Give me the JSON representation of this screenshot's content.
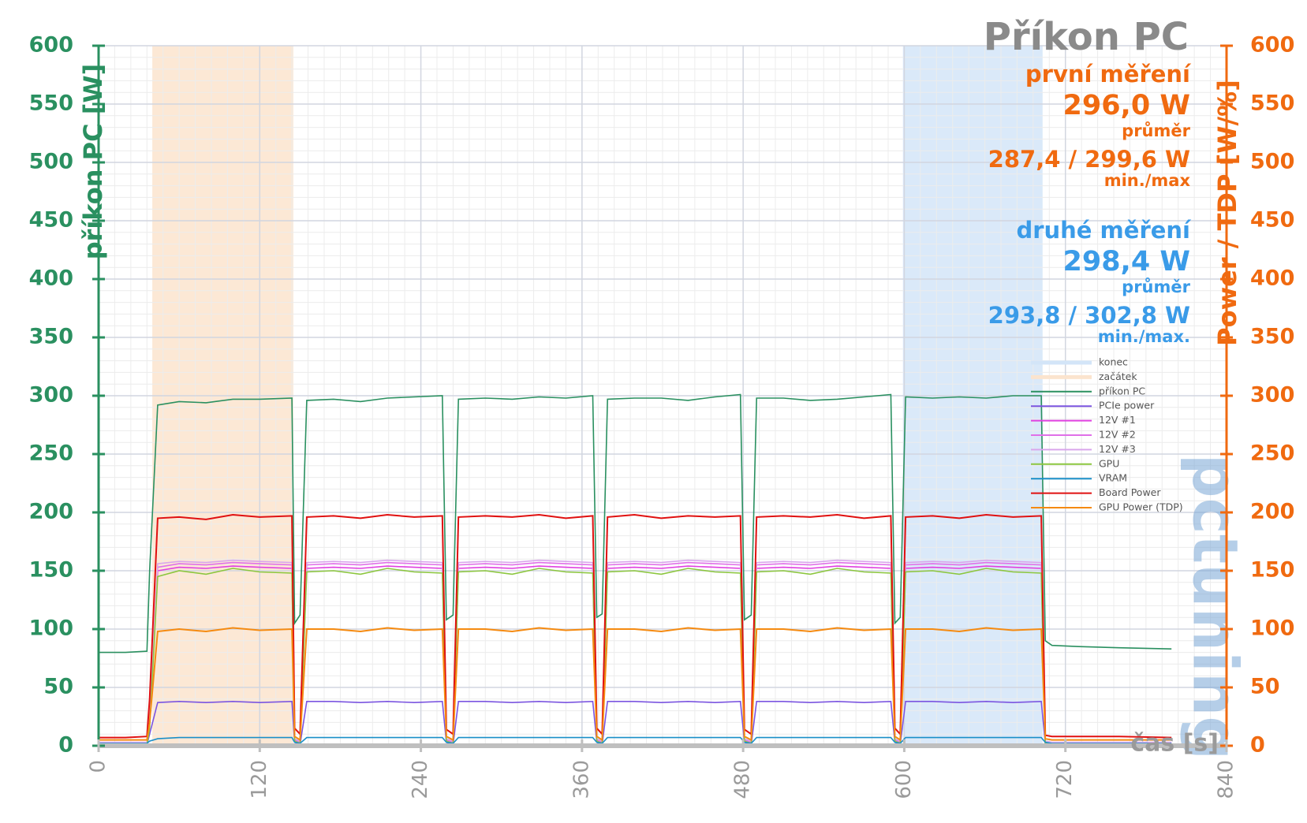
{
  "chart_data": {
    "type": "line",
    "title": "Příkon PC",
    "summary": [
      {
        "label": "první měření",
        "value": "296,0 W",
        "value_caption": "průměr",
        "range": "287,4 / 299,6 W",
        "range_caption": "min./max",
        "color": "#f06a10"
      },
      {
        "label": "druhé měření",
        "value": "298,4 W",
        "value_caption": "průměr",
        "range": "293,8 / 302,8 W",
        "range_caption": "min./max.",
        "color": "#3a9be8"
      }
    ],
    "xlabel": "čas [s]",
    "ylabel": "příkon PC [W]",
    "y2label": "Power / TDP [W/%]",
    "watermark": "pctuning",
    "xlim": [
      0,
      840
    ],
    "xticks": [
      0,
      120,
      240,
      360,
      480,
      600,
      720,
      840
    ],
    "ylim": [
      0,
      600
    ],
    "yticks": [
      0,
      50,
      100,
      150,
      200,
      250,
      300,
      350,
      400,
      450,
      500,
      550,
      600
    ],
    "y2lim": [
      0,
      600
    ],
    "y2ticks": [
      0,
      50,
      100,
      150,
      200,
      250,
      300,
      350,
      400,
      450,
      500,
      550,
      600
    ],
    "grid": true,
    "legend": "right",
    "bands": [
      {
        "name": "konec",
        "color": "#d3e5f8",
        "x": [
          599,
          703
        ]
      },
      {
        "name": "začátek",
        "color": "#fbe4ce",
        "x": [
          40,
          145
        ]
      }
    ],
    "x": [
      0,
      20,
      36,
      38,
      44,
      60,
      80,
      100,
      120,
      144,
      146,
      150,
      155,
      175,
      195,
      215,
      235,
      256,
      259,
      264,
      268,
      288,
      308,
      328,
      348,
      368,
      371,
      375,
      379,
      399,
      419,
      439,
      459,
      478,
      481,
      486,
      490,
      510,
      530,
      550,
      570,
      590,
      593,
      597,
      601,
      621,
      641,
      661,
      681,
      702,
      705,
      710,
      730,
      760,
      799
    ],
    "series": [
      {
        "name": "příkon PC",
        "color": "#2a9060",
        "values": [
          80,
          80,
          81,
          150,
          292,
          295,
          294,
          297,
          297,
          298,
          105,
          112,
          296,
          297,
          295,
          298,
          299,
          300,
          108,
          112,
          297,
          298,
          297,
          299,
          298,
          300,
          110,
          113,
          297,
          298,
          298,
          296,
          299,
          301,
          108,
          112,
          298,
          298,
          296,
          297,
          299,
          301,
          105,
          110,
          299,
          298,
          299,
          298,
          300,
          300,
          90,
          86,
          85,
          84,
          83
        ]
      },
      {
        "name": "PCIe power",
        "color": "#7b55e0",
        "axis": "y2",
        "values": [
          1,
          1,
          1,
          10,
          37,
          38,
          37,
          38,
          37,
          38,
          3,
          1,
          38,
          38,
          37,
          38,
          37,
          38,
          3,
          1,
          38,
          38,
          37,
          38,
          37,
          38,
          3,
          1,
          38,
          38,
          37,
          38,
          37,
          38,
          3,
          1,
          38,
          38,
          37,
          38,
          37,
          38,
          3,
          1,
          38,
          38,
          37,
          38,
          37,
          38,
          2,
          1,
          1,
          1,
          1
        ]
      },
      {
        "name": "12V #1",
        "color": "#e040e0",
        "axis": "y2",
        "values": [
          1,
          1,
          1,
          18,
          150,
          153,
          152,
          154,
          153,
          152,
          4,
          2,
          152,
          153,
          152,
          154,
          153,
          152,
          4,
          2,
          152,
          153,
          152,
          154,
          153,
          152,
          4,
          2,
          152,
          153,
          152,
          154,
          153,
          152,
          4,
          2,
          152,
          153,
          152,
          154,
          153,
          152,
          4,
          2,
          152,
          153,
          152,
          154,
          153,
          152,
          2,
          1,
          1,
          1,
          1
        ]
      },
      {
        "name": "12V #2",
        "color": "#e070e8",
        "axis": "y2",
        "values": [
          2,
          2,
          2,
          22,
          153,
          156,
          155,
          157,
          156,
          155,
          5,
          3,
          155,
          156,
          155,
          157,
          156,
          155,
          5,
          3,
          155,
          156,
          155,
          157,
          156,
          155,
          5,
          3,
          155,
          156,
          155,
          157,
          156,
          155,
          5,
          3,
          155,
          156,
          155,
          157,
          156,
          155,
          5,
          3,
          155,
          156,
          155,
          157,
          156,
          155,
          3,
          2,
          2,
          2,
          2
        ]
      },
      {
        "name": "12V #3",
        "color": "#d9a6ec",
        "axis": "y2",
        "values": [
          3,
          3,
          3,
          25,
          156,
          158,
          157,
          159,
          158,
          157,
          6,
          4,
          157,
          158,
          157,
          159,
          158,
          157,
          6,
          4,
          157,
          158,
          157,
          159,
          158,
          157,
          6,
          4,
          157,
          158,
          157,
          159,
          158,
          157,
          6,
          4,
          157,
          158,
          157,
          159,
          158,
          157,
          6,
          4,
          157,
          158,
          157,
          159,
          158,
          157,
          4,
          3,
          3,
          3,
          3
        ]
      },
      {
        "name": "GPU",
        "color": "#8cc63f",
        "axis": "y2",
        "values": [
          1,
          1,
          1,
          15,
          145,
          150,
          147,
          152,
          149,
          148,
          4,
          2,
          149,
          150,
          147,
          152,
          149,
          148,
          4,
          2,
          149,
          150,
          147,
          152,
          149,
          148,
          4,
          2,
          149,
          150,
          147,
          152,
          149,
          148,
          4,
          2,
          149,
          150,
          147,
          152,
          149,
          148,
          4,
          2,
          149,
          150,
          147,
          152,
          149,
          148,
          2,
          1,
          1,
          1,
          1
        ]
      },
      {
        "name": "VRAM",
        "color": "#1a8fc8",
        "axis": "y2",
        "values": [
          2,
          2,
          2,
          4,
          6,
          7,
          7,
          7,
          7,
          7,
          3,
          2,
          7,
          7,
          7,
          7,
          7,
          7,
          3,
          2,
          7,
          7,
          7,
          7,
          7,
          7,
          3,
          2,
          7,
          7,
          7,
          7,
          7,
          7,
          3,
          2,
          7,
          7,
          7,
          7,
          7,
          7,
          3,
          2,
          7,
          7,
          7,
          7,
          7,
          7,
          3,
          2,
          2,
          2,
          2
        ]
      },
      {
        "name": "Board Power",
        "color": "#e01010",
        "axis": "y2",
        "values": [
          7,
          7,
          8,
          40,
          195,
          196,
          194,
          198,
          196,
          197,
          15,
          10,
          196,
          197,
          195,
          198,
          196,
          197,
          14,
          10,
          196,
          197,
          196,
          198,
          195,
          197,
          15,
          10,
          196,
          198,
          195,
          197,
          196,
          197,
          14,
          10,
          196,
          197,
          196,
          198,
          195,
          197,
          15,
          10,
          196,
          197,
          195,
          198,
          196,
          197,
          9,
          8,
          8,
          8,
          7
        ]
      },
      {
        "name": "GPU Power (TDP)",
        "color": "#f58a10",
        "axis": "y2",
        "values": [
          5,
          5,
          5,
          20,
          98,
          100,
          98,
          101,
          99,
          100,
          8,
          5,
          100,
          100,
          98,
          101,
          99,
          100,
          8,
          5,
          100,
          100,
          98,
          101,
          99,
          100,
          8,
          5,
          100,
          100,
          98,
          101,
          99,
          100,
          8,
          5,
          100,
          100,
          98,
          101,
          99,
          100,
          8,
          5,
          100,
          100,
          98,
          101,
          99,
          100,
          6,
          5,
          5,
          5,
          5
        ]
      }
    ]
  }
}
